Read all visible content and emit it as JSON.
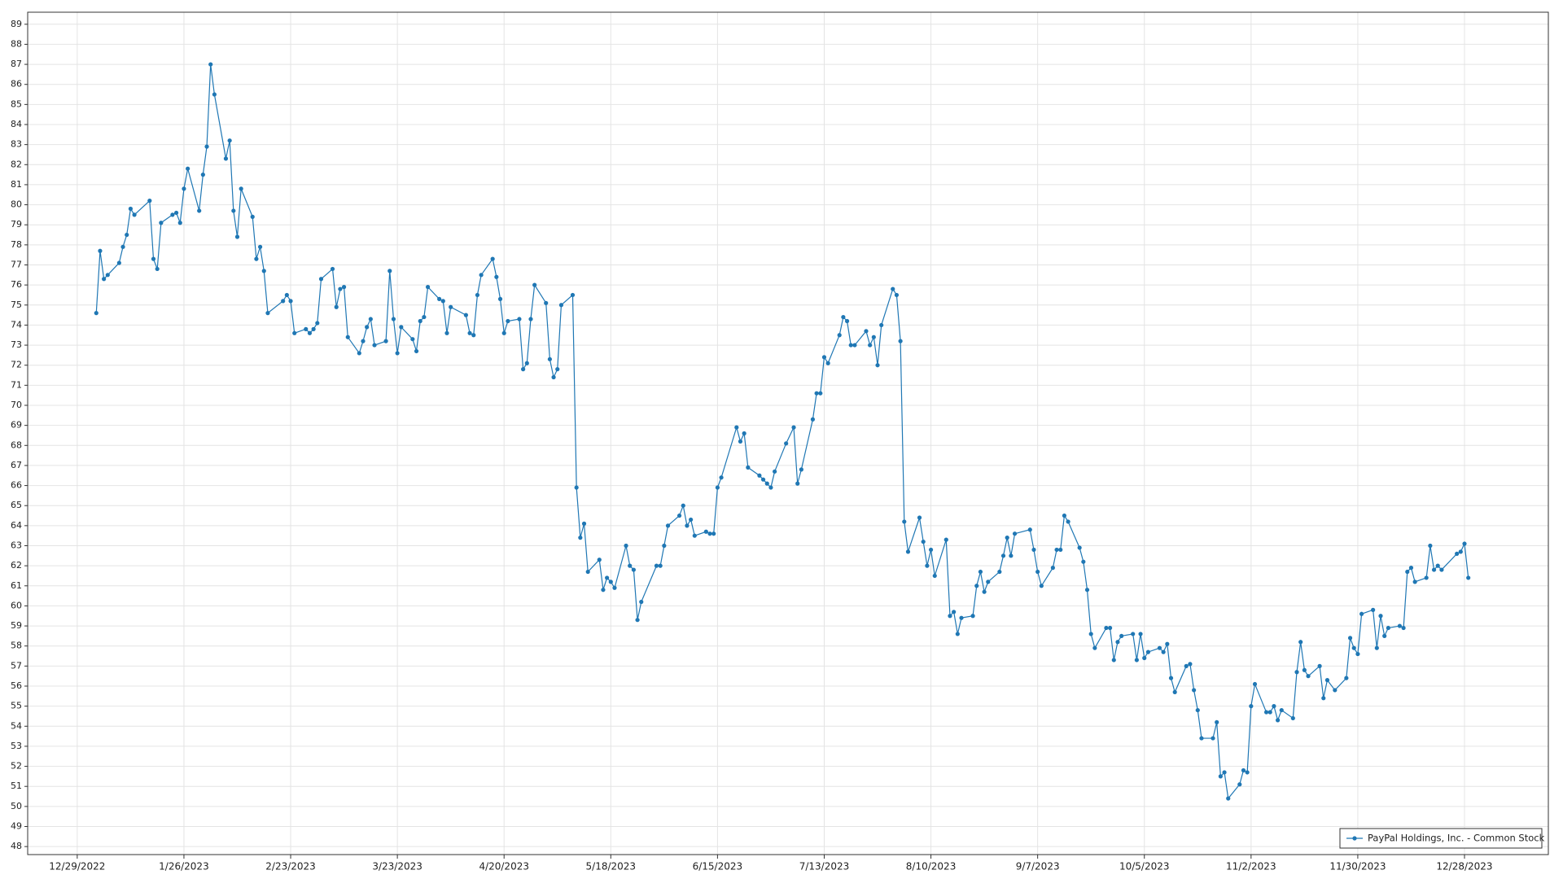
{
  "chart_data": {
    "type": "line",
    "x": [
      "1/3/2023",
      "1/4/2023",
      "1/5/2023",
      "1/6/2023",
      "1/9/2023",
      "1/10/2023",
      "1/11/2023",
      "1/12/2023",
      "1/13/2023",
      "1/17/2023",
      "1/18/2023",
      "1/19/2023",
      "1/20/2023",
      "1/23/2023",
      "1/24/2023",
      "1/25/2023",
      "1/26/2023",
      "1/27/2023",
      "1/30/2023",
      "1/31/2023",
      "2/1/2023",
      "2/2/2023",
      "2/3/2023",
      "2/6/2023",
      "2/7/2023",
      "2/8/2023",
      "2/9/2023",
      "2/10/2023",
      "2/13/2023",
      "2/14/2023",
      "2/15/2023",
      "2/16/2023",
      "2/17/2023",
      "2/21/2023",
      "2/22/2023",
      "2/23/2023",
      "2/24/2023",
      "2/27/2023",
      "2/28/2023",
      "3/1/2023",
      "3/2/2023",
      "3/3/2023",
      "3/6/2023",
      "3/7/2023",
      "3/8/2023",
      "3/9/2023",
      "3/10/2023",
      "3/13/2023",
      "3/14/2023",
      "3/15/2023",
      "3/16/2023",
      "3/17/2023",
      "3/20/2023",
      "3/21/2023",
      "3/22/2023",
      "3/23/2023",
      "3/24/2023",
      "3/27/2023",
      "3/28/2023",
      "3/29/2023",
      "3/30/2023",
      "3/31/2023",
      "4/3/2023",
      "4/4/2023",
      "4/5/2023",
      "4/6/2023",
      "4/10/2023",
      "4/11/2023",
      "4/12/2023",
      "4/13/2023",
      "4/14/2023",
      "4/17/2023",
      "4/18/2023",
      "4/19/2023",
      "4/20/2023",
      "4/21/2023",
      "4/24/2023",
      "4/25/2023",
      "4/26/2023",
      "4/27/2023",
      "4/28/2023",
      "5/1/2023",
      "5/2/2023",
      "5/3/2023",
      "5/4/2023",
      "5/5/2023",
      "5/8/2023",
      "5/9/2023",
      "5/10/2023",
      "5/11/2023",
      "5/12/2023",
      "5/15/2023",
      "5/16/2023",
      "5/17/2023",
      "5/18/2023",
      "5/19/2023",
      "5/22/2023",
      "5/23/2023",
      "5/24/2023",
      "5/25/2023",
      "5/26/2023",
      "5/30/2023",
      "5/31/2023",
      "6/1/2023",
      "6/2/2023",
      "6/5/2023",
      "6/6/2023",
      "6/7/2023",
      "6/8/2023",
      "6/9/2023",
      "6/12/2023",
      "6/13/2023",
      "6/14/2023",
      "6/15/2023",
      "6/16/2023",
      "6/20/2023",
      "6/21/2023",
      "6/22/2023",
      "6/23/2023",
      "6/26/2023",
      "6/27/2023",
      "6/28/2023",
      "6/29/2023",
      "6/30/2023",
      "7/3/2023",
      "7/5/2023",
      "7/6/2023",
      "7/7/2023",
      "7/10/2023",
      "7/11/2023",
      "7/12/2023",
      "7/13/2023",
      "7/14/2023",
      "7/17/2023",
      "7/18/2023",
      "7/19/2023",
      "7/20/2023",
      "7/21/2023",
      "7/24/2023",
      "7/25/2023",
      "7/26/2023",
      "7/27/2023",
      "7/28/2023",
      "7/31/2023",
      "8/1/2023",
      "8/2/2023",
      "8/3/2023",
      "8/4/2023",
      "8/7/2023",
      "8/8/2023",
      "8/9/2023",
      "8/10/2023",
      "8/11/2023",
      "8/14/2023",
      "8/15/2023",
      "8/16/2023",
      "8/17/2023",
      "8/18/2023",
      "8/21/2023",
      "8/22/2023",
      "8/23/2023",
      "8/24/2023",
      "8/25/2023",
      "8/28/2023",
      "8/29/2023",
      "8/30/2023",
      "8/31/2023",
      "9/1/2023",
      "9/5/2023",
      "9/6/2023",
      "9/7/2023",
      "9/8/2023",
      "9/11/2023",
      "9/12/2023",
      "9/13/2023",
      "9/14/2023",
      "9/15/2023",
      "9/18/2023",
      "9/19/2023",
      "9/20/2023",
      "9/21/2023",
      "9/22/2023",
      "9/25/2023",
      "9/26/2023",
      "9/27/2023",
      "9/28/2023",
      "9/29/2023",
      "10/2/2023",
      "10/3/2023",
      "10/4/2023",
      "10/5/2023",
      "10/6/2023",
      "10/9/2023",
      "10/10/2023",
      "10/11/2023",
      "10/12/2023",
      "10/13/2023",
      "10/16/2023",
      "10/17/2023",
      "10/18/2023",
      "10/19/2023",
      "10/20/2023",
      "10/23/2023",
      "10/24/2023",
      "10/25/2023",
      "10/26/2023",
      "10/27/2023",
      "10/30/2023",
      "10/31/2023",
      "11/1/2023",
      "11/2/2023",
      "11/3/2023",
      "11/6/2023",
      "11/7/2023",
      "11/8/2023",
      "11/9/2023",
      "11/10/2023",
      "11/13/2023",
      "11/14/2023",
      "11/15/2023",
      "11/16/2023",
      "11/17/2023",
      "11/20/2023",
      "11/21/2023",
      "11/22/2023",
      "11/24/2023",
      "11/27/2023",
      "11/28/2023",
      "11/29/2023",
      "11/30/2023",
      "12/1/2023",
      "12/4/2023",
      "12/5/2023",
      "12/6/2023",
      "12/7/2023",
      "12/8/2023",
      "12/11/2023",
      "12/12/2023",
      "12/13/2023",
      "12/14/2023",
      "12/15/2023",
      "12/18/2023",
      "12/19/2023",
      "12/20/2023",
      "12/21/2023",
      "12/22/2023",
      "12/26/2023",
      "12/27/2023",
      "12/28/2023",
      "12/29/2023"
    ],
    "series": [
      {
        "name": "PayPal Holdings, Inc. - Common Stock",
        "color": "#1f77b4",
        "values": [
          74.6,
          77.7,
          76.3,
          76.5,
          77.1,
          77.9,
          78.5,
          79.8,
          79.5,
          80.2,
          77.3,
          76.8,
          79.1,
          79.5,
          79.6,
          79.1,
          80.8,
          81.8,
          79.7,
          81.5,
          82.9,
          87.0,
          85.5,
          82.3,
          83.2,
          79.7,
          78.4,
          80.8,
          79.4,
          77.3,
          77.9,
          76.7,
          74.6,
          75.2,
          75.5,
          75.2,
          73.6,
          73.8,
          73.6,
          73.8,
          74.1,
          76.3,
          76.8,
          74.9,
          75.8,
          75.9,
          73.4,
          72.6,
          73.2,
          73.9,
          74.3,
          73.0,
          73.2,
          76.7,
          74.3,
          72.6,
          73.9,
          73.3,
          72.7,
          74.2,
          74.4,
          75.9,
          75.3,
          75.2,
          73.6,
          74.9,
          74.5,
          73.6,
          73.5,
          75.5,
          76.5,
          77.3,
          76.4,
          75.3,
          73.6,
          74.2,
          74.3,
          71.8,
          72.1,
          74.3,
          76.0,
          75.1,
          72.3,
          71.4,
          71.8,
          75.0,
          75.5,
          65.9,
          63.4,
          64.1,
          61.7,
          62.3,
          60.8,
          61.4,
          61.2,
          60.9,
          63.0,
          62.0,
          61.8,
          59.3,
          60.2,
          62.0,
          62.0,
          63.0,
          64.0,
          64.5,
          65.0,
          64.0,
          64.3,
          63.5,
          63.7,
          63.6,
          63.6,
          65.9,
          66.4,
          68.9,
          68.2,
          68.6,
          66.9,
          66.5,
          66.3,
          66.1,
          65.9,
          66.7,
          68.1,
          68.9,
          66.1,
          66.8,
          69.3,
          70.6,
          70.6,
          72.4,
          72.1,
          73.5,
          74.4,
          74.2,
          73.0,
          73.0,
          73.7,
          73.0,
          73.4,
          72.0,
          74.0,
          75.8,
          75.5,
          73.2,
          64.2,
          62.7,
          64.4,
          63.2,
          62.0,
          62.8,
          61.5,
          63.3,
          59.5,
          59.7,
          58.6,
          59.4,
          59.5,
          61.0,
          61.7,
          60.7,
          61.2,
          61.7,
          62.5,
          63.4,
          62.5,
          63.6,
          63.8,
          62.8,
          61.7,
          61.0,
          61.9,
          62.8,
          62.8,
          64.5,
          64.2,
          62.9,
          62.2,
          60.8,
          58.6,
          57.9,
          58.9,
          58.9,
          57.3,
          58.2,
          58.5,
          58.6,
          57.3,
          58.6,
          57.4,
          57.7,
          57.9,
          57.7,
          58.1,
          56.4,
          55.7,
          57.0,
          57.1,
          55.8,
          54.8,
          53.4,
          53.4,
          54.2,
          51.5,
          51.7,
          50.4,
          51.1,
          51.8,
          51.7,
          55.0,
          56.1,
          54.7,
          54.7,
          55.0,
          54.3,
          54.8,
          54.4,
          56.7,
          58.2,
          56.8,
          56.5,
          57.0,
          55.4,
          56.3,
          55.8,
          56.4,
          58.4,
          57.9,
          57.6,
          59.6,
          59.8,
          57.9,
          59.5,
          58.5,
          58.9,
          59.0,
          58.9,
          61.7,
          61.9,
          61.2,
          61.4,
          63.0,
          61.8,
          62.0,
          61.8,
          62.6,
          62.7,
          63.1,
          61.4
        ]
      }
    ],
    "xlim": [
      "12/16/2022",
      "1/19/2024"
    ],
    "xticks": [
      "12/29/2022",
      "1/26/2023",
      "2/23/2023",
      "3/23/2023",
      "4/20/2023",
      "5/18/2023",
      "6/15/2023",
      "7/13/2023",
      "8/10/2023",
      "9/7/2023",
      "10/5/2023",
      "11/2/2023",
      "11/30/2023",
      "12/28/2023"
    ],
    "ylim": [
      47.6,
      89.6
    ],
    "yticks": [
      48,
      49,
      50,
      51,
      52,
      53,
      54,
      55,
      56,
      57,
      58,
      59,
      60,
      61,
      62,
      63,
      64,
      65,
      66,
      67,
      68,
      69,
      70,
      71,
      72,
      73,
      74,
      75,
      76,
      77,
      78,
      79,
      80,
      81,
      82,
      83,
      84,
      85,
      86,
      87,
      88,
      89
    ],
    "grid": true,
    "legend": "lower right"
  }
}
